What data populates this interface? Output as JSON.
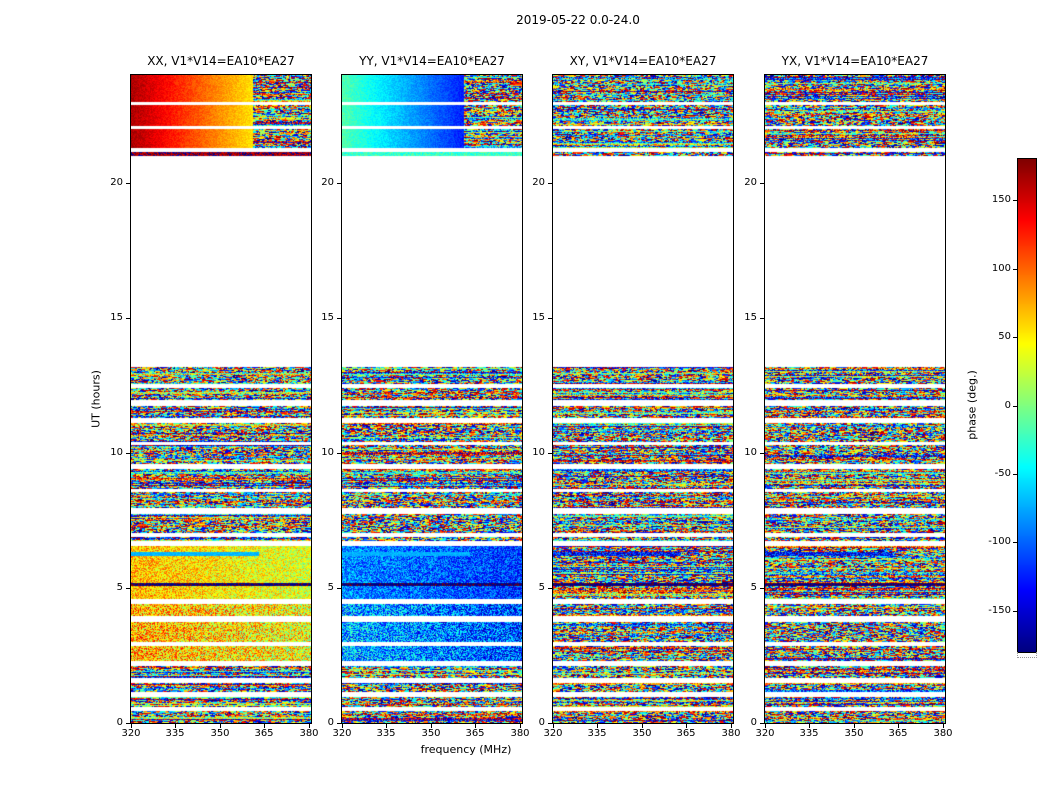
{
  "chart_data": {
    "type": "heatmap",
    "title": "2019-05-22 0.0-24.0",
    "xlabel": "frequency (MHz)",
    "ylabel": "UT (hours)",
    "x_range": [
      320,
      380.7
    ],
    "y_range": [
      0,
      24
    ],
    "x_ticks": [
      320,
      335,
      350,
      365,
      380
    ],
    "y_ticks": [
      0,
      5,
      10,
      15,
      20
    ],
    "grid": false,
    "colorbar": {
      "label": "phase (deg.)",
      "ticks": [
        150,
        100,
        50,
        0,
        -50,
        -100,
        -150
      ],
      "range": [
        -180,
        180
      ],
      "colormap": "jet"
    },
    "time_segments": [
      [
        0.0,
        0.45
      ],
      [
        0.6,
        0.95
      ],
      [
        1.15,
        1.5
      ],
      [
        1.65,
        2.1
      ],
      [
        2.3,
        2.85
      ],
      [
        3.0,
        3.75
      ],
      [
        3.95,
        4.4
      ],
      [
        4.6,
        6.55
      ],
      [
        6.75,
        6.9
      ],
      [
        7.05,
        7.75
      ],
      [
        7.95,
        8.55
      ],
      [
        8.65,
        9.4
      ],
      [
        9.6,
        10.3
      ],
      [
        10.4,
        11.1
      ],
      [
        11.3,
        11.75
      ],
      [
        11.95,
        12.4
      ],
      [
        12.55,
        13.2
      ],
      [
        21.0,
        21.15
      ],
      [
        21.3,
        22.0
      ],
      [
        22.1,
        22.9
      ],
      [
        23.0,
        24.0
      ]
    ],
    "panels": [
      {
        "title": "XX, V1*V14=EA10*EA27",
        "seed": 11,
        "features": [
          {
            "t": [
              21.0,
              21.15
            ],
            "f": [
              320,
              380.7
            ],
            "phase": [
              170,
              170
            ],
            "noise": 25
          },
          {
            "t": [
              21.3,
              24.0
            ],
            "f": [
              320,
              361
            ],
            "phase": [
              165,
              55
            ],
            "noise": 12
          },
          {
            "t": [
              2.3,
              4.6
            ],
            "f": [
              320,
              380.7
            ],
            "phase": [
              75,
              40
            ],
            "noise": 70
          },
          {
            "t": [
              4.6,
              6.55
            ],
            "f": [
              320,
              380.7
            ],
            "phase": [
              70,
              30
            ],
            "noise": 45
          },
          {
            "t": [
              6.2,
              6.35
            ],
            "f": [
              320,
              363
            ],
            "phase": [
              -70,
              -70
            ],
            "noise": 10
          },
          {
            "t": [
              5.08,
              5.2
            ],
            "f": [
              320,
              380.7
            ],
            "phase": [
              -178,
              -178
            ],
            "noise": 4
          }
        ]
      },
      {
        "title": "YY, V1*V14=EA10*EA27",
        "seed": 22,
        "features": [
          {
            "t": [
              21.0,
              21.15
            ],
            "f": [
              320,
              380.7
            ],
            "phase": [
              -25,
              -25
            ],
            "noise": 25
          },
          {
            "t": [
              21.3,
              24.0
            ],
            "f": [
              320,
              361
            ],
            "phase": [
              -15,
              -125
            ],
            "noise": 12
          },
          {
            "t": [
              2.3,
              4.6
            ],
            "f": [
              320,
              380.7
            ],
            "phase": [
              -70,
              -110
            ],
            "noise": 70
          },
          {
            "t": [
              4.6,
              6.55
            ],
            "f": [
              320,
              380.7
            ],
            "phase": [
              -85,
              -115
            ],
            "noise": 45
          },
          {
            "t": [
              6.2,
              6.35
            ],
            "f": [
              320,
              363
            ],
            "phase": [
              -72,
              -72
            ],
            "noise": 10
          },
          {
            "t": [
              5.08,
              5.2
            ],
            "f": [
              320,
              380.7
            ],
            "phase": [
              -178,
              -178
            ],
            "noise": 4
          }
        ]
      },
      {
        "title": "XY, V1*V14=EA10*EA27",
        "seed": 33,
        "features": [
          {
            "t": [
              6.2,
              6.35
            ],
            "f": [
              320,
              363
            ],
            "phase": [
              -130,
              -130
            ],
            "noise": 55
          },
          {
            "t": [
              5.08,
              5.2
            ],
            "f": [
              320,
              380.7
            ],
            "phase": [
              -178,
              -178
            ],
            "noise": 4
          }
        ]
      },
      {
        "title": "YX, V1*V14=EA10*EA27",
        "seed": 44,
        "features": [
          {
            "t": [
              6.2,
              6.35
            ],
            "f": [
              320,
              363
            ],
            "phase": [
              -130,
              -130
            ],
            "noise": 55
          },
          {
            "t": [
              5.08,
              5.2
            ],
            "f": [
              320,
              380.7
            ],
            "phase": [
              -178,
              -178
            ],
            "noise": 4
          }
        ]
      }
    ]
  }
}
